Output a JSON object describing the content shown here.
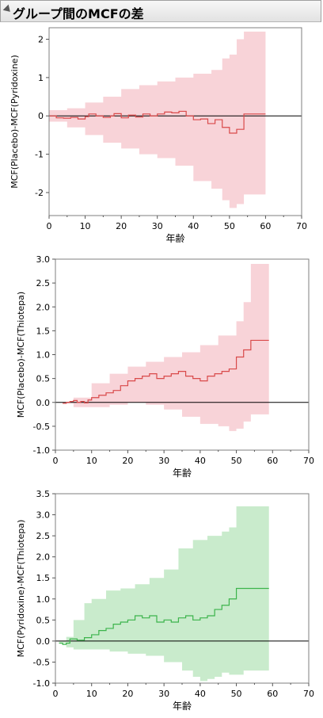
{
  "title": "グループ間のMCFの差",
  "colors": {
    "red_band": "#f8d3d8",
    "red_line": "#d94a4a",
    "green_band": "#c9ebcc",
    "green_line": "#3cb44b",
    "zero_line": "#000000"
  },
  "chart_data": [
    {
      "type": "line",
      "xlabel": "年齢",
      "ylabel": "MCF(Placebo)-MCF(Pyridoxine)",
      "xlim": [
        0,
        70
      ],
      "ylim": [
        -2.6,
        2.3
      ],
      "xticks": [
        "0",
        "10",
        "20",
        "30",
        "40",
        "50",
        "60",
        "70"
      ],
      "yticks": [
        "-2",
        "-1",
        "0",
        "1",
        "2"
      ],
      "ytick_values": [
        -2,
        -1,
        0,
        1,
        2
      ],
      "color": "red",
      "estimate": {
        "x": [
          0,
          2,
          4,
          6,
          8,
          10,
          11,
          13,
          15,
          17,
          18,
          20,
          22,
          24,
          26,
          28,
          30,
          32,
          34,
          36,
          38,
          40,
          42,
          44,
          46,
          48,
          50,
          52,
          54,
          60
        ],
        "y": [
          0,
          -0.05,
          -0.06,
          -0.04,
          -0.08,
          -0.02,
          0.05,
          0.0,
          -0.04,
          0.0,
          0.06,
          -0.05,
          0.02,
          -0.03,
          0.05,
          0.0,
          0.05,
          0.1,
          0.08,
          0.12,
          0.0,
          -0.1,
          -0.08,
          -0.2,
          -0.1,
          -0.3,
          -0.45,
          -0.35,
          0.05,
          0.05
        ]
      },
      "band_upper": {
        "x": [
          0,
          5,
          10,
          15,
          20,
          25,
          30,
          35,
          40,
          45,
          48,
          50,
          52,
          54,
          60
        ],
        "y": [
          0.15,
          0.2,
          0.35,
          0.5,
          0.7,
          0.8,
          0.9,
          1.0,
          1.1,
          1.2,
          1.5,
          1.6,
          2.0,
          2.2,
          2.2
        ]
      },
      "band_lower": {
        "x": [
          0,
          5,
          10,
          15,
          20,
          25,
          30,
          35,
          40,
          45,
          48,
          50,
          52,
          54,
          60
        ],
        "y": [
          -0.15,
          -0.3,
          -0.5,
          -0.7,
          -0.85,
          -1.0,
          -1.1,
          -1.3,
          -1.7,
          -1.9,
          -2.2,
          -2.4,
          -2.3,
          -2.05,
          -2.05
        ]
      }
    },
    {
      "type": "line",
      "xlabel": "年齢",
      "ylabel": "MCF(Placebo)-MCF(Thiotepa)",
      "xlim": [
        0,
        70
      ],
      "ylim": [
        -1.0,
        3.0
      ],
      "xticks": [
        "0",
        "10",
        "20",
        "30",
        "40",
        "50",
        "60",
        "70"
      ],
      "yticks": [
        "-1.0",
        "-0.5",
        "0.0",
        "0.5",
        "1.0",
        "1.5",
        "2.0",
        "2.5",
        "3.0"
      ],
      "ytick_values": [
        -1.0,
        -0.5,
        0.0,
        0.5,
        1.0,
        1.5,
        2.0,
        2.5,
        3.0
      ],
      "color": "red",
      "estimate": {
        "x": [
          2,
          3,
          4,
          5,
          6,
          7,
          8,
          9,
          10,
          12,
          14,
          16,
          18,
          20,
          22,
          24,
          26,
          28,
          30,
          32,
          34,
          36,
          38,
          40,
          42,
          44,
          46,
          48,
          50,
          52,
          54,
          59
        ],
        "y": [
          -0.02,
          0.0,
          0.02,
          0.04,
          0.0,
          0.02,
          -0.01,
          0.05,
          0.1,
          0.15,
          0.2,
          0.25,
          0.35,
          0.45,
          0.5,
          0.55,
          0.6,
          0.5,
          0.55,
          0.6,
          0.65,
          0.55,
          0.5,
          0.45,
          0.55,
          0.6,
          0.65,
          0.7,
          0.95,
          1.1,
          1.3,
          1.3
        ]
      },
      "band_upper": {
        "x": [
          2,
          5,
          10,
          15,
          20,
          25,
          30,
          35,
          40,
          45,
          50,
          52,
          54,
          59
        ],
        "y": [
          0.0,
          0.1,
          0.4,
          0.6,
          0.75,
          0.85,
          0.95,
          1.05,
          1.2,
          1.4,
          1.7,
          2.1,
          2.9,
          2.9
        ]
      },
      "band_lower": {
        "x": [
          2,
          5,
          10,
          15,
          20,
          25,
          30,
          35,
          40,
          45,
          48,
          50,
          52,
          54,
          59
        ],
        "y": [
          -0.02,
          -0.1,
          -0.1,
          -0.05,
          0.0,
          -0.05,
          -0.15,
          -0.3,
          -0.45,
          -0.5,
          -0.6,
          -0.55,
          -0.4,
          -0.25,
          -0.25
        ]
      }
    },
    {
      "type": "line",
      "xlabel": "年齢",
      "ylabel": "MCF(Pyridoxine)-MCF(Thiotepa)",
      "xlim": [
        0,
        70
      ],
      "ylim": [
        -1.0,
        3.5
      ],
      "xticks": [
        "0",
        "10",
        "20",
        "30",
        "40",
        "50",
        "60",
        "70"
      ],
      "yticks": [
        "-1.0",
        "-0.5",
        "0.0",
        "0.5",
        "1.0",
        "1.5",
        "2.0",
        "2.5",
        "3.0",
        "3.5"
      ],
      "ytick_values": [
        -1.0,
        -0.5,
        0.0,
        0.5,
        1.0,
        1.5,
        2.0,
        2.5,
        3.0,
        3.5
      ],
      "color": "green",
      "estimate": {
        "x": [
          1,
          2,
          3,
          4,
          5,
          6,
          8,
          10,
          12,
          14,
          16,
          18,
          20,
          22,
          24,
          26,
          28,
          30,
          32,
          34,
          36,
          38,
          40,
          42,
          44,
          46,
          48,
          50,
          52,
          59
        ],
        "y": [
          -0.05,
          -0.08,
          -0.05,
          0.05,
          0.05,
          0.02,
          0.08,
          0.15,
          0.25,
          0.3,
          0.4,
          0.45,
          0.5,
          0.6,
          0.55,
          0.6,
          0.45,
          0.5,
          0.45,
          0.55,
          0.6,
          0.5,
          0.55,
          0.6,
          0.75,
          0.85,
          1.0,
          1.25,
          1.25,
          1.25
        ]
      },
      "band_upper": {
        "x": [
          1,
          3,
          5,
          8,
          10,
          14,
          18,
          22,
          26,
          30,
          34,
          38,
          42,
          46,
          48,
          50,
          59
        ],
        "y": [
          0.0,
          0.1,
          0.5,
          0.9,
          1.0,
          1.2,
          1.25,
          1.35,
          1.5,
          1.7,
          2.2,
          2.4,
          2.5,
          2.6,
          2.7,
          3.2,
          3.2
        ]
      },
      "band_lower": {
        "x": [
          1,
          3,
          5,
          10,
          15,
          20,
          25,
          30,
          35,
          38,
          40,
          42,
          44,
          46,
          48,
          50,
          52,
          59
        ],
        "y": [
          -0.05,
          -0.15,
          -0.2,
          -0.2,
          -0.25,
          -0.3,
          -0.35,
          -0.5,
          -0.7,
          -0.85,
          -0.95,
          -0.9,
          -0.85,
          -0.75,
          -0.8,
          -0.8,
          -0.7,
          -0.7
        ]
      }
    }
  ]
}
